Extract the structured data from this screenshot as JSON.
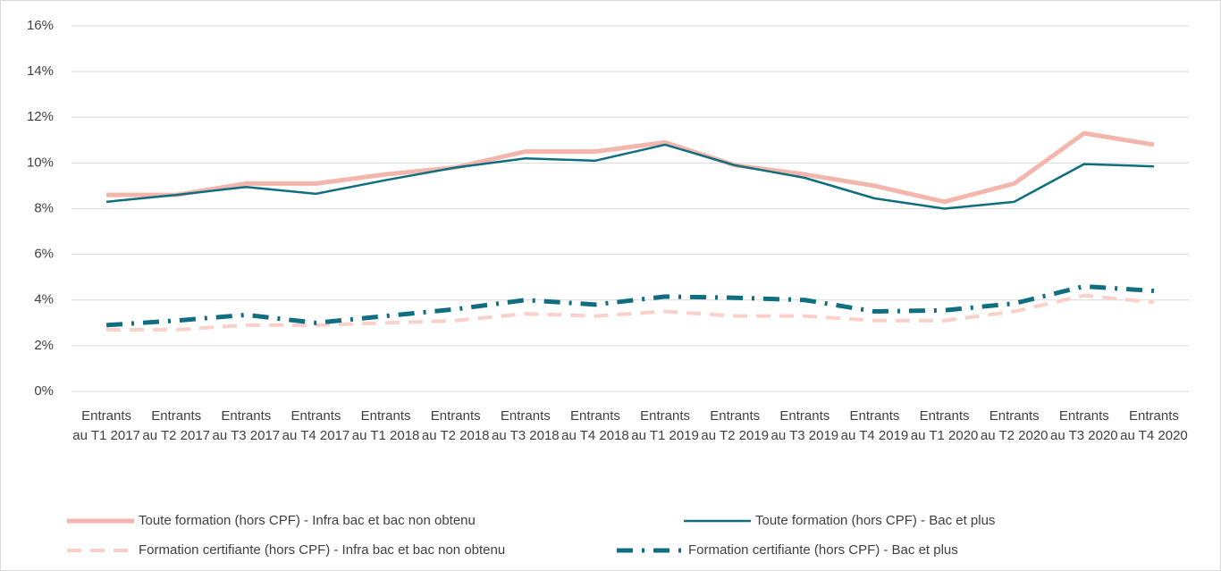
{
  "chart_data": {
    "type": "line",
    "categories": [
      "Entrants au T1 2017",
      "Entrants au T2 2017",
      "Entrants au T3 2017",
      "Entrants au T4 2017",
      "Entrants au T1 2018",
      "Entrants au T2 2018",
      "Entrants au T3 2018",
      "Entrants au T4 2018",
      "Entrants au T1 2019",
      "Entrants au T2 2019",
      "Entrants au T3 2019",
      "Entrants au T4 2019",
      "Entrants au T1 2020",
      "Entrants au T2 2020",
      "Entrants au T3 2020",
      "Entrants au T4 2020"
    ],
    "series": [
      {
        "name": "Toute formation (hors CPF) - Infra bac et bac non obtenu",
        "color": "#f4b6ac",
        "style": "solid",
        "values": [
          8.6,
          8.6,
          9.1,
          9.1,
          9.5,
          9.8,
          10.5,
          10.5,
          10.9,
          9.9,
          9.5,
          9.0,
          8.3,
          9.1,
          11.3,
          10.8
        ]
      },
      {
        "name": "Toute formation (hors CPF) - Bac et plus",
        "color": "#0f6e80",
        "style": "solid",
        "values": [
          8.3,
          8.6,
          8.95,
          8.65,
          9.25,
          9.8,
          10.2,
          10.1,
          10.8,
          9.9,
          9.35,
          8.45,
          8.0,
          8.3,
          9.95,
          9.85
        ]
      },
      {
        "name": "Formation certifiante (hors CPF) - Infra bac et bac non obtenu",
        "color": "#fbd0c9",
        "style": "dash",
        "values": [
          2.7,
          2.7,
          2.9,
          2.9,
          3.0,
          3.1,
          3.4,
          3.3,
          3.5,
          3.3,
          3.3,
          3.1,
          3.1,
          3.5,
          4.2,
          3.9
        ]
      },
      {
        "name": "Formation certifiante (hors CPF) - Bac et plus",
        "color": "#0f6e80",
        "style": "dashdot",
        "values": [
          2.9,
          3.1,
          3.35,
          3.0,
          3.3,
          3.6,
          4.0,
          3.8,
          4.15,
          4.1,
          4.0,
          3.5,
          3.55,
          3.85,
          4.6,
          4.4
        ]
      }
    ],
    "ylim": [
      0,
      16
    ],
    "yticks": [
      {
        "value": 0,
        "label": "0%"
      },
      {
        "value": 2,
        "label": "2%"
      },
      {
        "value": 4,
        "label": "4%"
      },
      {
        "value": 6,
        "label": "6%"
      },
      {
        "value": 8,
        "label": "8%"
      },
      {
        "value": 10,
        "label": "10%"
      },
      {
        "value": 12,
        "label": "12%"
      },
      {
        "value": 14,
        "label": "14%"
      },
      {
        "value": 16,
        "label": "16%"
      }
    ],
    "grid": true,
    "legend": "bottom"
  }
}
